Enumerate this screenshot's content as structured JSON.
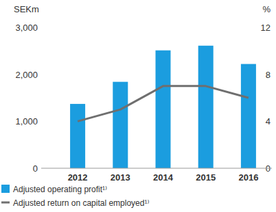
{
  "chart_data": {
    "type": "bar",
    "categories": [
      "2012",
      "2013",
      "2014",
      "2015",
      "2016"
    ],
    "series": [
      {
        "name": "Adjusted operating profit¹⁾",
        "type": "bar",
        "color": "#1b9ddf",
        "values": [
          1370,
          1840,
          2510,
          2610,
          2220
        ]
      },
      {
        "name": "Adjusted return on capital employed¹⁾",
        "type": "line",
        "color": "#6f6f6f",
        "axis": "y2",
        "values": [
          4.0,
          5.0,
          7.0,
          7.0,
          6.0
        ]
      }
    ],
    "y_label": "SEKm",
    "y2_label": "%",
    "ylim": [
      0,
      3000
    ],
    "yticks": [
      0,
      {
        "value": 1000,
        "label": "1,000"
      },
      {
        "value": 2000,
        "label": "2,000"
      },
      {
        "value": 3000,
        "label": "3,000"
      }
    ],
    "y2lim": [
      0,
      12
    ],
    "y2ticks": [
      0,
      4,
      8,
      12
    ],
    "grid": false,
    "legend": "bottom-left"
  }
}
